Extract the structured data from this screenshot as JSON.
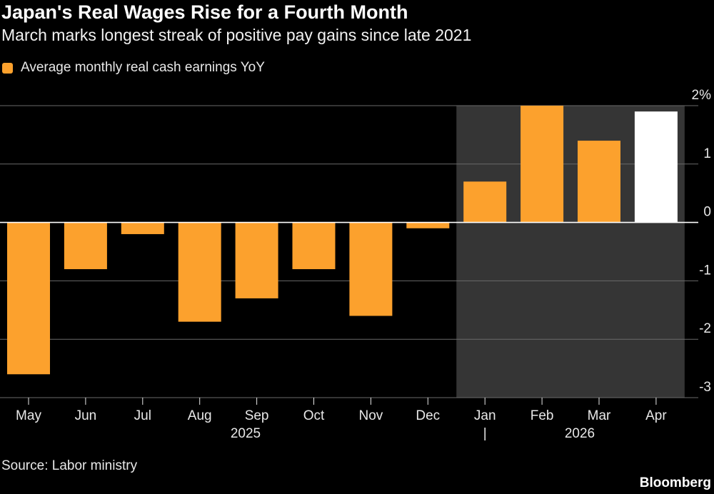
{
  "title": "Japan's Real Wages Rise for a Fourth Month",
  "subtitle": "March marks longest streak of positive pay gains since late 2021",
  "source": "Source: Labor ministry",
  "brand": "Bloomberg",
  "colors": {
    "bar": "#fca12d",
    "highlight_bar": "#ffffff",
    "shade": "#353535",
    "grid": "#6a6a6a",
    "zero_line": "#ffffff",
    "text": "#e8e8e8"
  },
  "chart_data": {
    "type": "bar",
    "title": "Japan's Real Wages Rise for a Fourth Month",
    "subtitle": "March marks longest streak of positive pay gains since late 2021",
    "categories": [
      "May",
      "Jun",
      "Jul",
      "Aug",
      "Sep",
      "Oct",
      "Nov",
      "Dec",
      "Jan",
      "Feb",
      "Mar",
      "Apr"
    ],
    "year_labels": [
      "2025",
      "2026"
    ],
    "year_divider": "|",
    "series": [
      {
        "name": "Average monthly real cash earnings YoY",
        "values": [
          -2.6,
          -0.8,
          -0.2,
          -1.7,
          -1.3,
          -0.8,
          -1.6,
          -0.1,
          0.7,
          2.0,
          1.4,
          1.9
        ]
      }
    ],
    "highlighted_category": "Apr",
    "shaded_range": [
      "Jan",
      "Apr"
    ],
    "ylim": [
      -3,
      2
    ],
    "yticks": [
      2,
      1,
      0,
      -1,
      -2,
      -3
    ],
    "ytick_labels": [
      "2%",
      "1",
      "0",
      "-1",
      "-2",
      "-3"
    ],
    "y_axis_side": "right",
    "grid": true,
    "legend_position": "top-left"
  }
}
